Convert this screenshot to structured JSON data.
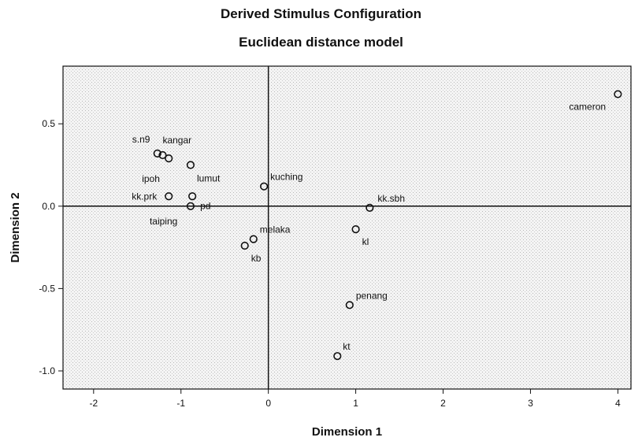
{
  "chart_data": {
    "type": "scatter",
    "title": "Derived Stimulus Configuration",
    "subtitle": "Euclidean distance model",
    "xlabel": "Dimension 1",
    "ylabel": "Dimension 2",
    "xlim": [
      -2.35,
      4.15
    ],
    "ylim": [
      -1.11,
      0.85
    ],
    "xticks": [
      -2,
      -1,
      0,
      1,
      2,
      3,
      4
    ],
    "yticks": [
      -1.0,
      -0.5,
      0.0,
      0.5
    ],
    "ytick_labels": [
      "-1.0",
      "-0.5",
      "0.0",
      "0.5"
    ],
    "reference_lines": {
      "x": 0,
      "y": 0
    },
    "grid": false,
    "points": [
      {
        "label": "cameron",
        "x": 4.0,
        "y": 0.68
      },
      {
        "label": "s.n9",
        "x": -1.27,
        "y": 0.32
      },
      {
        "label": "kangar",
        "x": -1.21,
        "y": 0.31
      },
      {
        "label": "ipoh",
        "x": -1.14,
        "y": 0.29
      },
      {
        "label": "lumut",
        "x": -0.89,
        "y": 0.25
      },
      {
        "label": "kuching",
        "x": -0.05,
        "y": 0.12
      },
      {
        "label": "kk.prk",
        "x": -1.14,
        "y": 0.06
      },
      {
        "label": "pd",
        "x": -0.87,
        "y": 0.06
      },
      {
        "label": "taiping",
        "x": -0.89,
        "y": 0.0
      },
      {
        "label": "kk.sbh",
        "x": 1.16,
        "y": -0.01
      },
      {
        "label": "melaka",
        "x": -0.17,
        "y": -0.2
      },
      {
        "label": "kb",
        "x": -0.27,
        "y": -0.24
      },
      {
        "label": "kl",
        "x": 1.0,
        "y": -0.14
      },
      {
        "label": "penang",
        "x": 0.93,
        "y": -0.6
      },
      {
        "label": "kt",
        "x": 0.79,
        "y": -0.91
      }
    ]
  }
}
